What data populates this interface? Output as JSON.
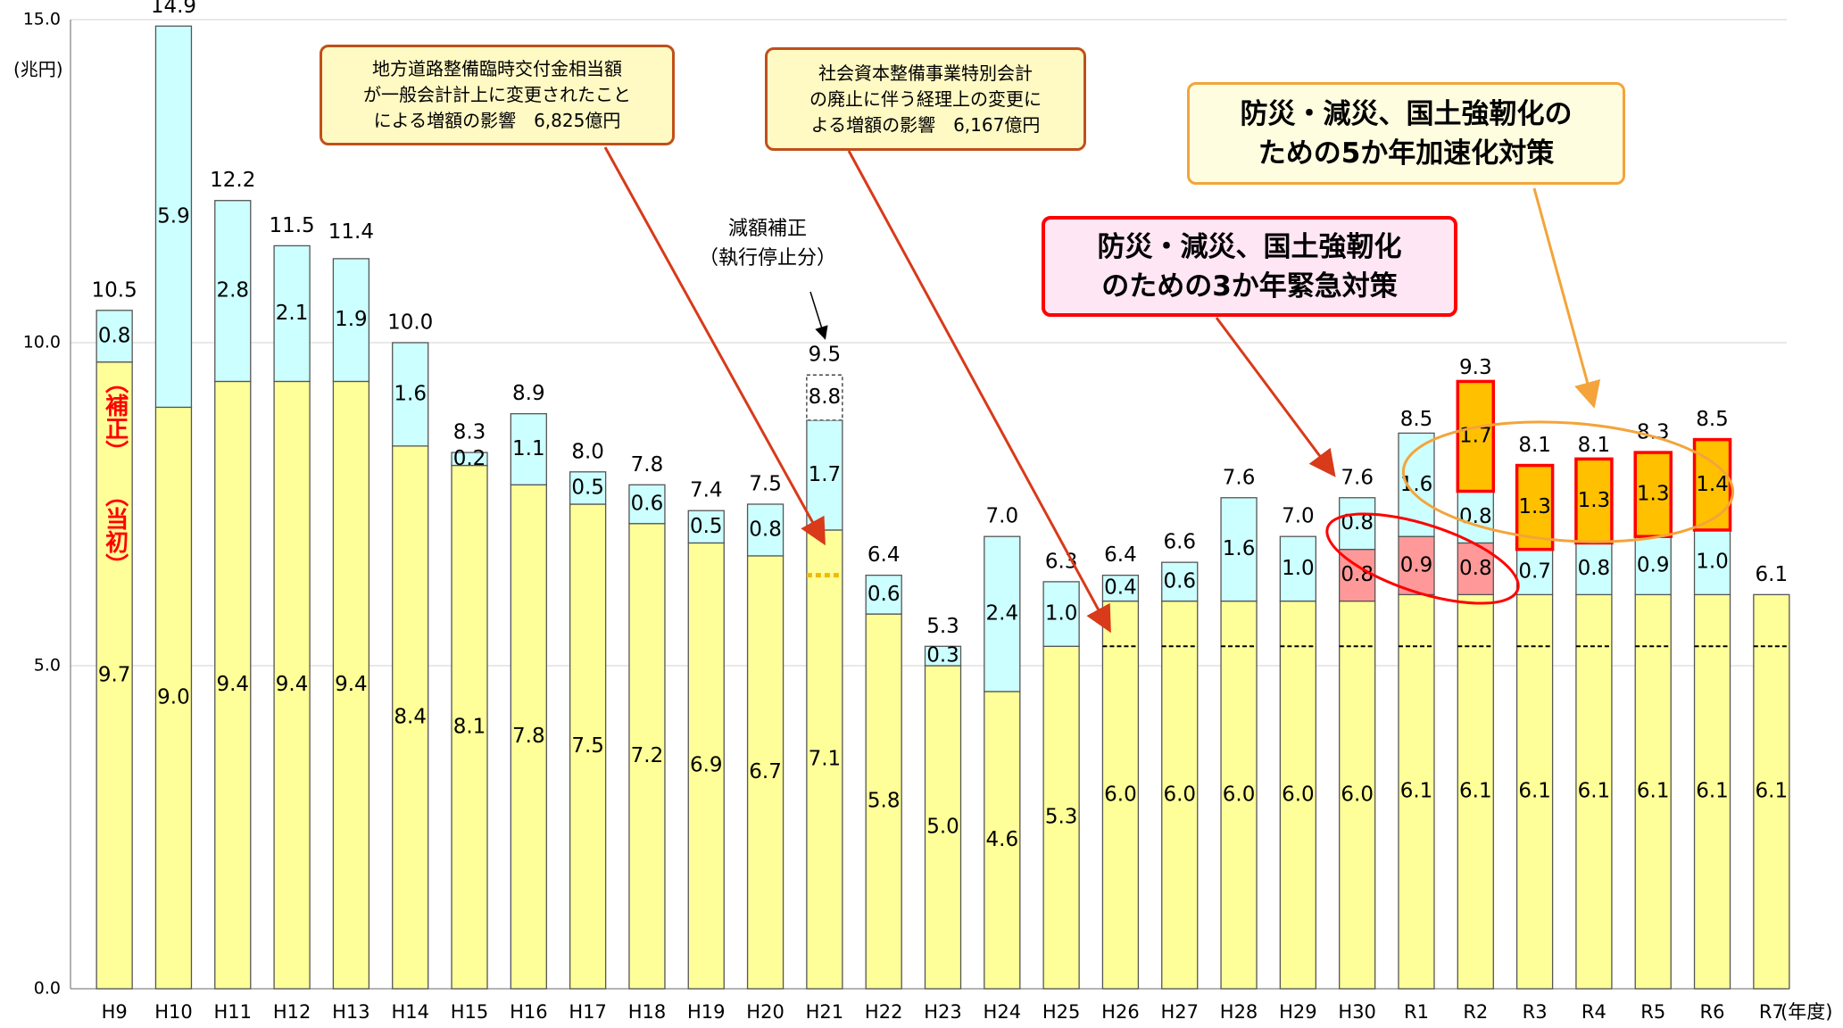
{
  "chart_data": {
    "type": "stacked_bar",
    "unit_label": "(兆円)",
    "x_label": "(年度)",
    "categories": [
      "H9",
      "H10",
      "H11",
      "H12",
      "H13",
      "H14",
      "H15",
      "H16",
      "H17",
      "H18",
      "H19",
      "H20",
      "H21",
      "H22",
      "H23",
      "H24",
      "H25",
      "H26",
      "H27",
      "H28",
      "H29",
      "H30",
      "R1",
      "R2",
      "R3",
      "R4",
      "R5",
      "R6",
      "R7"
    ],
    "ylim": [
      0,
      15
    ],
    "yticks": [
      {
        "value": 0,
        "label": "0.0"
      },
      {
        "value": 5,
        "label": "5.0"
      },
      {
        "value": 10,
        "label": "10.0"
      },
      {
        "value": 15,
        "label": "15.0"
      }
    ],
    "grid": true,
    "series": [
      {
        "name": "（当初）",
        "color": "#ffff99",
        "stroke": "#555555",
        "values": [
          9.7,
          9.0,
          9.4,
          9.4,
          9.4,
          8.4,
          8.1,
          7.8,
          7.5,
          7.2,
          6.9,
          6.7,
          7.1,
          5.8,
          5.0,
          4.6,
          5.3,
          6.0,
          6.0,
          6.0,
          6.0,
          6.0,
          6.1,
          6.1,
          6.1,
          6.1,
          6.1,
          6.1,
          6.1
        ],
        "value_labels": [
          "9.7",
          "9.0",
          "9.4",
          "9.4",
          "9.4",
          "8.4",
          "8.1",
          "7.8",
          "7.5",
          "7.2",
          "6.9",
          "6.7",
          "7.1",
          "5.8",
          "5.0",
          "4.6",
          "5.3",
          "6.0",
          "6.0",
          "6.0",
          "6.0",
          "6.0",
          "6.1",
          "6.1",
          "6.1",
          "6.1",
          "6.1",
          "6.1",
          "6.1"
        ]
      },
      {
        "name": "防災・減災、国土強靭化\nのための3か年緊急対策",
        "color": "#ff9999",
        "stroke": "#555555",
        "values": [
          null,
          null,
          null,
          null,
          null,
          null,
          null,
          null,
          null,
          null,
          null,
          null,
          null,
          null,
          null,
          null,
          null,
          null,
          null,
          null,
          null,
          0.8,
          0.9,
          0.8,
          null,
          null,
          null,
          null,
          null
        ],
        "value_labels": [
          null,
          null,
          null,
          null,
          null,
          null,
          null,
          null,
          null,
          null,
          null,
          null,
          null,
          null,
          null,
          null,
          null,
          null,
          null,
          null,
          null,
          "0.8",
          "0.9",
          "0.8",
          null,
          null,
          null,
          null,
          null
        ]
      },
      {
        "name": "（補正）",
        "color": "#ccffff",
        "stroke": "#555555",
        "values": [
          0.8,
          5.9,
          2.8,
          2.1,
          1.9,
          1.6,
          0.2,
          1.1,
          0.5,
          0.6,
          0.5,
          0.8,
          1.7,
          0.6,
          0.3,
          2.4,
          1.0,
          0.4,
          0.6,
          1.6,
          1.0,
          0.8,
          1.6,
          0.8,
          0.7,
          0.8,
          0.9,
          1.0,
          null
        ],
        "value_labels": [
          "0.8",
          "5.9",
          "2.8",
          "2.1",
          "1.9",
          "1.6",
          "0.2",
          "1.1",
          "0.5",
          "0.6",
          "0.5",
          "0.8",
          "1.7",
          "0.6",
          "0.3",
          "2.4",
          "1.0",
          "0.4",
          "0.6",
          "1.6",
          "1.0",
          "0.8",
          "1.6",
          "0.8",
          "0.7",
          "0.8",
          "0.9",
          "1.0",
          null
        ]
      },
      {
        "name": "防災・減災、国土強靭化の\nための5か年加速化対策",
        "color": "#ffc000",
        "stroke": "#ff0000",
        "values": [
          null,
          null,
          null,
          null,
          null,
          null,
          null,
          null,
          null,
          null,
          null,
          null,
          null,
          null,
          null,
          null,
          null,
          null,
          null,
          null,
          null,
          null,
          null,
          1.7,
          1.3,
          1.3,
          1.3,
          1.4,
          null
        ],
        "value_labels": [
          null,
          null,
          null,
          null,
          null,
          null,
          null,
          null,
          null,
          null,
          null,
          null,
          null,
          null,
          null,
          null,
          null,
          null,
          null,
          null,
          null,
          null,
          null,
          "1.7",
          "1.3",
          "1.3",
          "1.3",
          "1.4",
          null
        ]
      }
    ],
    "totals": {
      "values": [
        10.5,
        14.9,
        12.2,
        11.5,
        11.4,
        10.0,
        8.3,
        8.9,
        8.0,
        7.8,
        7.4,
        7.5,
        9.5,
        6.4,
        5.3,
        7.0,
        6.3,
        6.4,
        6.6,
        7.6,
        7.0,
        7.6,
        8.5,
        9.3,
        8.1,
        8.1,
        8.3,
        8.5,
        6.1
      ],
      "value_labels": [
        "10.5",
        "14.9",
        "12.2",
        "11.5",
        "11.4",
        "10.0",
        "8.3",
        "8.9",
        "8.0",
        "7.8",
        "7.4",
        "7.5",
        "9.5",
        "6.4",
        "5.3",
        "7.0",
        "6.3",
        "6.4",
        "6.6",
        "7.6",
        "7.0",
        "7.6",
        "8.5",
        "9.3",
        "8.1",
        "8.1",
        "8.3",
        "8.5",
        "6.1"
      ]
    },
    "dashed_box": {
      "category": "H21",
      "values": [
        8.8,
        9.5
      ],
      "label": "8.8"
    },
    "dotted_mark": {
      "category": "H21",
      "value": 6.4,
      "color": "#f5b800"
    },
    "dashed_marks": {
      "from": "H26",
      "to": "R7",
      "value": 5.3
    },
    "annotations": [
      "地方道路整備臨時交付金相当額\nが一般会計計上に変更されたこと\nによる増額の影響　6,825億円",
      "社会資本整備事業特別会計\nの廃止に伴う経理上の変更に\nよる増額の影響　6,167億円",
      "減額補正\n（執行停止分）"
    ]
  }
}
